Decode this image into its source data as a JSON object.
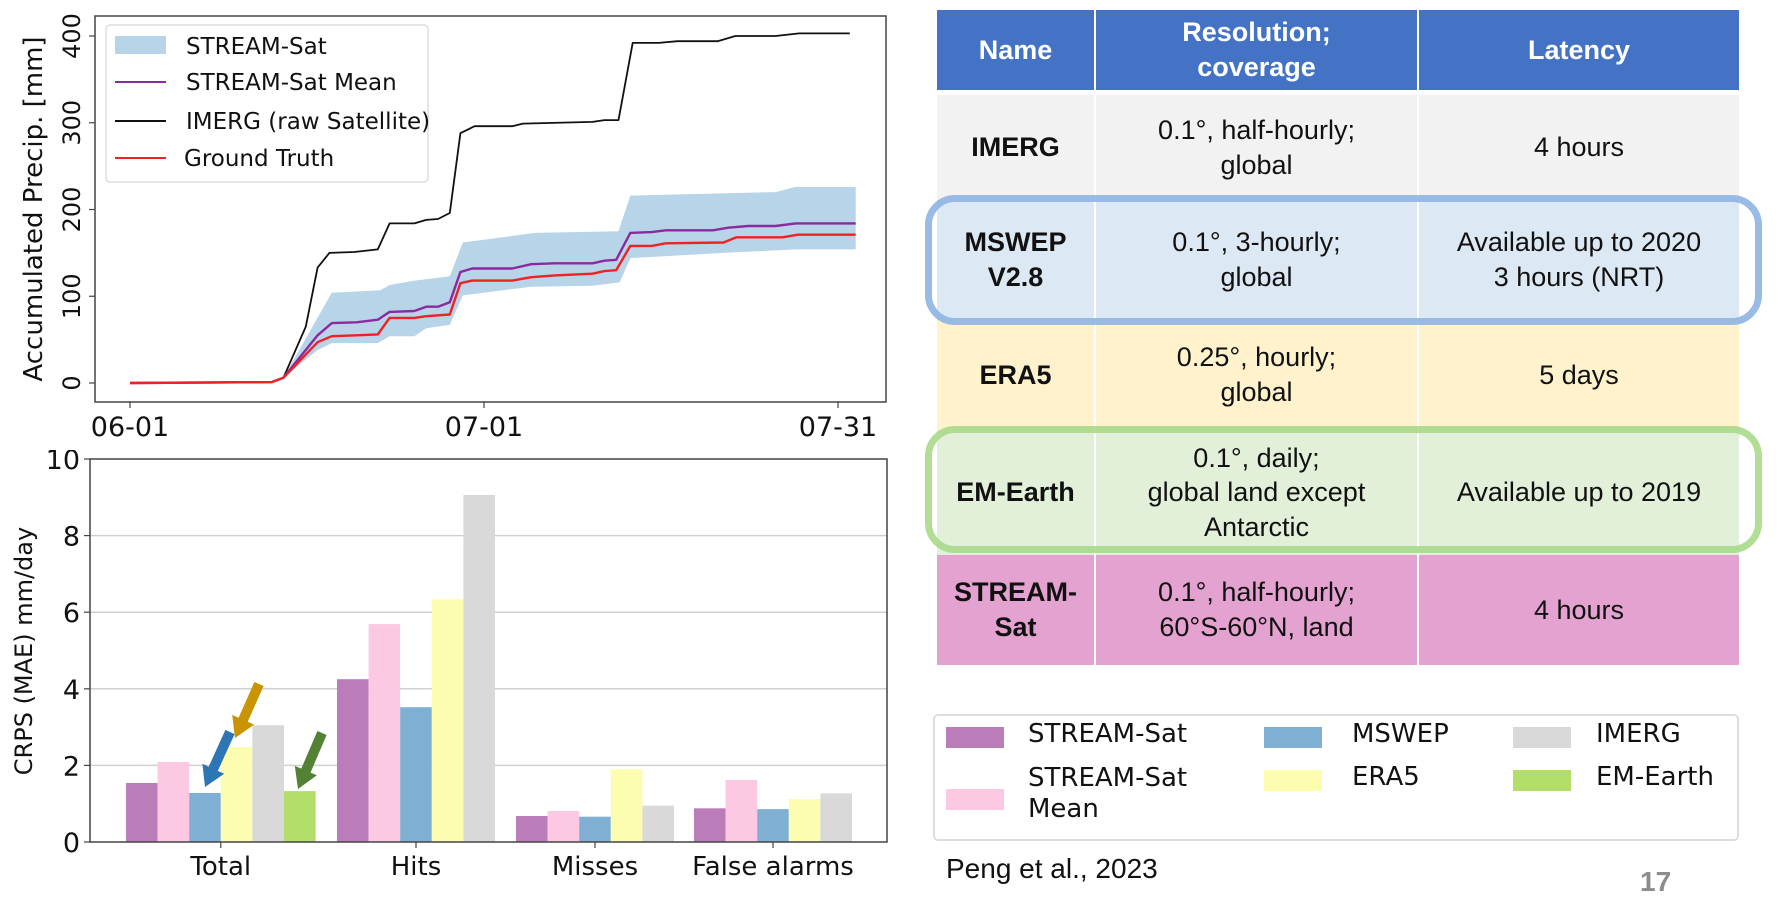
{
  "chart_data": [
    {
      "type": "line",
      "title": "",
      "ylabel": "Accumulated Precip. [mm]",
      "xlabel": "",
      "ylim": [
        -20,
        425
      ],
      "x_unit": "days since 06-01",
      "xlim_days": [
        -6,
        67
      ],
      "xticks": [
        {
          "day": 0,
          "label": "06-01"
        },
        {
          "day": 30,
          "label": "07-01"
        },
        {
          "day": 60,
          "label": "07-31"
        }
      ],
      "yticks": [
        0,
        100,
        200,
        300,
        400
      ],
      "grid": false,
      "legend_position": "top-left",
      "legend": [
        "STREAM-Sat",
        "STREAM-Sat Mean",
        "IMERG (raw Satellite)",
        "Ground Truth"
      ],
      "series": [
        {
          "name": "STREAM-Sat",
          "kind": "band",
          "color": "#b8d4e8",
          "upper": [
            [
              0,
              0
            ],
            [
              12,
              1
            ],
            [
              13,
              6
            ],
            [
              17.1,
              104
            ],
            [
              21.2,
              107
            ],
            [
              22,
              113
            ],
            [
              24.1,
              118
            ],
            [
              27.1,
              123
            ],
            [
              28.2,
              162
            ],
            [
              34.3,
              173
            ],
            [
              41.4,
              175
            ],
            [
              42.4,
              216
            ],
            [
              54.7,
              220
            ],
            [
              56.4,
              226
            ],
            [
              61.5,
              226
            ]
          ],
          "lower": [
            [
              0,
              0
            ],
            [
              12,
              1
            ],
            [
              13,
              6
            ],
            [
              15.9,
              38
            ],
            [
              17.1,
              46
            ],
            [
              21,
              46
            ],
            [
              22,
              54
            ],
            [
              24.1,
              54
            ],
            [
              25.1,
              63
            ],
            [
              27.1,
              67
            ],
            [
              28.2,
              101
            ],
            [
              34,
              111
            ],
            [
              39.2,
              112
            ],
            [
              41.5,
              116
            ],
            [
              42.4,
              144
            ],
            [
              50.3,
              150
            ],
            [
              56.4,
              154
            ],
            [
              61.5,
              154
            ]
          ]
        },
        {
          "name": "STREAM-Sat Mean",
          "kind": "line",
          "color": "#8a2a9e",
          "points": [
            [
              0,
              0
            ],
            [
              12,
              1
            ],
            [
              13,
              6
            ],
            [
              15.9,
              55
            ],
            [
              17.1,
              69
            ],
            [
              19.2,
              70
            ],
            [
              21,
              73
            ],
            [
              22,
              82
            ],
            [
              24.1,
              83
            ],
            [
              25.1,
              88
            ],
            [
              26.1,
              88
            ],
            [
              27.1,
              93
            ],
            [
              28,
              128
            ],
            [
              29,
              132
            ],
            [
              32.4,
              132
            ],
            [
              34,
              137
            ],
            [
              36,
              138
            ],
            [
              39.2,
              138
            ],
            [
              40.2,
              141
            ],
            [
              41.2,
              142
            ],
            [
              42.4,
              173
            ],
            [
              44.2,
              174
            ],
            [
              45.4,
              176
            ],
            [
              49.4,
              176
            ],
            [
              50.7,
              179
            ],
            [
              52.4,
              181
            ],
            [
              54.7,
              181
            ],
            [
              56.4,
              184
            ],
            [
              61.5,
              184
            ]
          ]
        },
        {
          "name": "IMERG (raw Satellite)",
          "kind": "line",
          "color": "#111111",
          "points": [
            [
              0,
              0
            ],
            [
              12,
              1
            ],
            [
              13,
              6
            ],
            [
              14.9,
              65
            ],
            [
              15.9,
              133
            ],
            [
              16.9,
              150
            ],
            [
              19,
              151
            ],
            [
              21,
              154
            ],
            [
              22,
              184
            ],
            [
              24.1,
              184
            ],
            [
              25.1,
              188
            ],
            [
              26.1,
              189
            ],
            [
              27.1,
              196
            ],
            [
              28,
              288
            ],
            [
              29.2,
              296
            ],
            [
              32.4,
              296
            ],
            [
              33.3,
              299
            ],
            [
              39.2,
              301
            ],
            [
              40.2,
              303
            ],
            [
              41.4,
              303
            ],
            [
              42.6,
              392
            ],
            [
              44.8,
              392
            ],
            [
              46.4,
              394
            ],
            [
              49.8,
              394
            ],
            [
              51.3,
              400
            ],
            [
              54.7,
              400
            ],
            [
              56.7,
              403
            ],
            [
              61,
              403
            ]
          ]
        },
        {
          "name": "Ground Truth",
          "kind": "line",
          "color": "#ee2222",
          "points": [
            [
              0,
              0
            ],
            [
              12,
              1
            ],
            [
              13,
              6
            ],
            [
              15.9,
              47
            ],
            [
              17.1,
              54
            ],
            [
              19.2,
              55
            ],
            [
              21,
              56
            ],
            [
              22,
              75
            ],
            [
              24.1,
              75
            ],
            [
              25.1,
              77
            ],
            [
              27.1,
              79
            ],
            [
              28,
              115
            ],
            [
              29,
              118
            ],
            [
              32.4,
              118
            ],
            [
              34,
              122
            ],
            [
              36,
              124
            ],
            [
              39.2,
              126
            ],
            [
              40.2,
              129
            ],
            [
              41.2,
              130
            ],
            [
              42.4,
              158
            ],
            [
              44.2,
              158
            ],
            [
              45.4,
              161
            ],
            [
              50.3,
              162
            ],
            [
              51.4,
              168
            ],
            [
              55.3,
              168
            ],
            [
              56.6,
              171
            ],
            [
              61.5,
              171
            ]
          ]
        }
      ]
    },
    {
      "type": "bar",
      "title": "",
      "ylabel": "CRPS (MAE) mm/day",
      "xlabel": "",
      "ylim": [
        0,
        10
      ],
      "yticks": [
        0,
        2,
        4,
        6,
        8,
        10
      ],
      "grid": true,
      "categories": [
        "Total",
        "Hits",
        "Misses",
        "False alarms"
      ],
      "series": [
        {
          "name": "STREAM-Sat",
          "color": "#bb7db9",
          "values": [
            1.54,
            4.25,
            0.68,
            0.88
          ]
        },
        {
          "name": "STREAM-Sat\n Mean",
          "color": "#fcc8e2",
          "values": [
            2.09,
            5.69,
            0.81,
            1.62
          ]
        },
        {
          "name": "MSWEP",
          "color": "#7fb0d3",
          "values": [
            1.28,
            3.52,
            0.66,
            0.86
          ]
        },
        {
          "name": "ERA5",
          "color": "#fdfdb0",
          "values": [
            2.48,
            6.34,
            1.9,
            1.12
          ]
        },
        {
          "name": "IMERG",
          "color": "#d9d9d9",
          "values": [
            3.05,
            9.06,
            0.95,
            1.27
          ]
        },
        {
          "name": "EM-Earth",
          "color": "#b3de69",
          "values": [
            1.33,
            null,
            null,
            null
          ]
        }
      ],
      "annotations": [
        {
          "type": "arrow",
          "color": "#c99400",
          "points_to": "ERA5 Total"
        },
        {
          "type": "arrow",
          "color": "#2e75b6",
          "points_to": "MSWEP Total"
        },
        {
          "type": "arrow",
          "color": "#548235",
          "points_to": "EM-Earth Total"
        }
      ],
      "legend_position": "right-bottom (outside)"
    }
  ],
  "table": {
    "header_color": "#4472c4",
    "headers": [
      "Name",
      "Resolution;\ncoverage",
      "Latency"
    ],
    "rows": [
      {
        "name": "IMERG",
        "resolution": "0.1°, half-hourly;\nglobal",
        "latency": "4 hours",
        "bg": "#f2f2f2"
      },
      {
        "name": "MSWEP\nV2.8",
        "resolution": "0.1°, 3-hourly;\nglobal",
        "latency": "Available up to 2020\n3 hours (NRT)",
        "bg": "#dde8f5"
      },
      {
        "name": "ERA5",
        "resolution": "0.25°, hourly;\nglobal",
        "latency": "5 days",
        "bg": "#fff2cc"
      },
      {
        "name": "EM-Earth",
        "resolution": "0.1°, daily;\nglobal land except\nAntarctic",
        "latency": "Available up to 2019",
        "bg": "#e2efd9"
      },
      {
        "name": "STREAM-\nSat",
        "resolution": "0.1°, half-hourly;\n60°S-60°N, land",
        "latency": "4 hours",
        "bg": "#e4a2d0"
      }
    ],
    "highlight_colors": {
      "mswep": "#8eb4e3",
      "em_earth": "#a9d98a"
    }
  },
  "bar_legend": [
    {
      "label": "STREAM-Sat",
      "color": "#bb7db9"
    },
    {
      "label": "STREAM-Sat\n Mean",
      "color": "#fcc8e2"
    },
    {
      "label": "MSWEP",
      "color": "#7fb0d3"
    },
    {
      "label": "ERA5",
      "color": "#fdfdb0"
    },
    {
      "label": "IMERG",
      "color": "#d9d9d9"
    },
    {
      "label": "EM-Earth",
      "color": "#b3de69"
    }
  ],
  "citation": "Peng et al., 2023",
  "page_number": "17"
}
